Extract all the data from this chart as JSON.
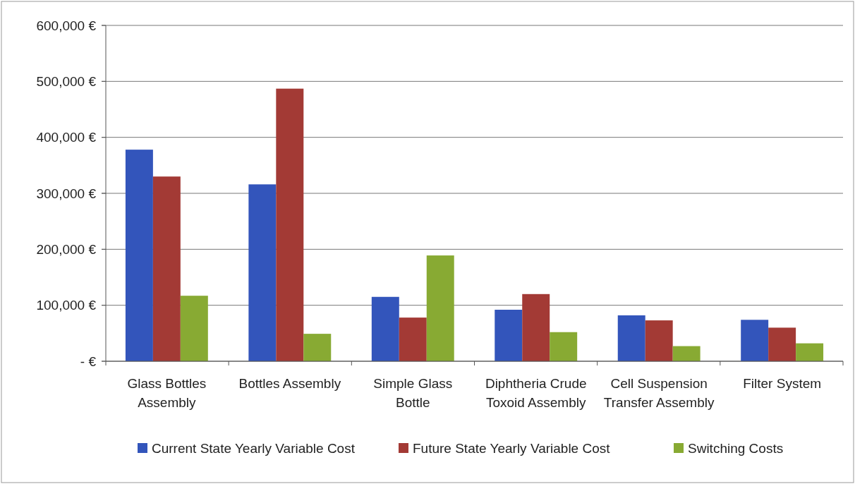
{
  "chart_data": {
    "type": "bar",
    "categories": [
      "Glass Bottles Assembly",
      "Bottles Assembly",
      "Simple Glass Bottle",
      "Diphtheria Crude Toxoid Assembly",
      "Cell Suspension Transfer Assembly",
      "Filter System"
    ],
    "series": [
      {
        "name": "Current State Yearly Variable Cost",
        "color": "#3355bb",
        "values": [
          378000,
          316000,
          115000,
          92000,
          82000,
          74000
        ]
      },
      {
        "name": "Future State Yearly Variable Cost",
        "color": "#a33a35",
        "values": [
          330000,
          487000,
          78000,
          120000,
          73000,
          60000
        ]
      },
      {
        "name": "Switching Costs",
        "color": "#88aa33",
        "values": [
          117000,
          49000,
          189000,
          52000,
          27000,
          32000
        ]
      }
    ],
    "ylim": [
      0,
      600000
    ],
    "yticks": [
      {
        "value": 0,
        "label": "-   €"
      },
      {
        "value": 100000,
        "label": "100,000 €"
      },
      {
        "value": 200000,
        "label": "200,000 €"
      },
      {
        "value": 300000,
        "label": "300,000 €"
      },
      {
        "value": 400000,
        "label": "400,000 €"
      },
      {
        "value": 500000,
        "label": "500,000 €"
      },
      {
        "value": 600000,
        "label": "600,000 €"
      }
    ],
    "grid": "y",
    "legend": "bottom"
  }
}
